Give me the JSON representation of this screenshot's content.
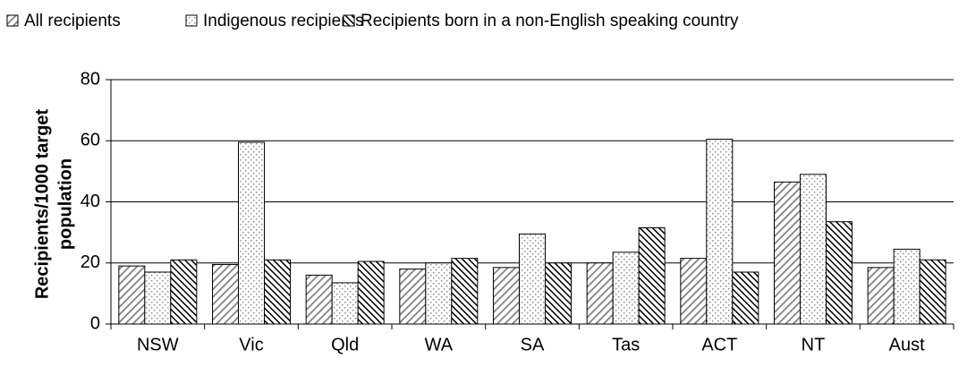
{
  "chart_data": {
    "type": "bar",
    "ylabel": [
      "Recipients/1000 target",
      "population"
    ],
    "categories": [
      "NSW",
      "Vic",
      "Qld",
      "WA",
      "SA",
      "Tas",
      "ACT",
      "NT",
      "Aust"
    ],
    "series": [
      {
        "name": "All recipients",
        "color": "#808080",
        "pattern": "hatch",
        "values": [
          19,
          19.5,
          16,
          18,
          18.5,
          20,
          21.5,
          46.5,
          18.5
        ]
      },
      {
        "name": "Indigenous recipients",
        "color": "#808080",
        "pattern": "dots",
        "values": [
          17,
          59.5,
          13.5,
          20,
          29.5,
          23.5,
          60.5,
          49,
          24.5
        ]
      },
      {
        "name": "Recipients born in a non-English speaking country",
        "color": "#000000",
        "pattern": "dense-hatch",
        "values": [
          21,
          21,
          20.5,
          21.5,
          20,
          31.5,
          17,
          33.5,
          21
        ]
      }
    ],
    "ylim": [
      0,
      80
    ],
    "yticks": [
      0,
      20,
      40,
      60,
      80
    ],
    "grid": true,
    "legend": "top"
  }
}
